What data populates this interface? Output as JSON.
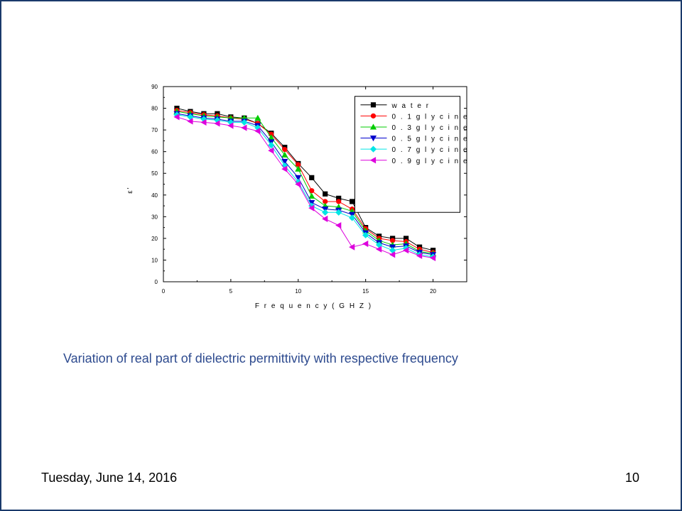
{
  "slide": {
    "caption": "Variation of real part of dielectric permittivity with respective frequency",
    "date": "Tuesday, June 14, 2016",
    "page_number": "10"
  },
  "chart_data": {
    "type": "line",
    "title": "",
    "xlabel": "F r e q u e n c y  ( G H Z )",
    "ylabel": "ε'",
    "xlim": [
      0,
      22.5
    ],
    "ylim": [
      0,
      90
    ],
    "xticks": [
      0,
      5,
      10,
      15,
      20
    ],
    "yticks": [
      0,
      10,
      20,
      30,
      40,
      50,
      60,
      70,
      80,
      90
    ],
    "grid": false,
    "legend_position": "top-right",
    "x": [
      1,
      2,
      3,
      4,
      5,
      6,
      7,
      8,
      9,
      10,
      11,
      12,
      13,
      14,
      15,
      16,
      17,
      18,
      19,
      20
    ],
    "series": [
      {
        "name": "w a t e r",
        "color": "#000000",
        "marker": "square",
        "values": [
          80,
          78.5,
          77.5,
          77.5,
          76,
          75.5,
          73,
          68.5,
          62,
          54.5,
          48,
          40.5,
          38.5,
          37,
          25,
          21,
          20,
          20,
          16,
          14.5
        ]
      },
      {
        "name": "0 . 1  g l y c i n e",
        "color": "#ff0000",
        "marker": "circle",
        "values": [
          79,
          78,
          77,
          76.5,
          75.5,
          75,
          73,
          68,
          61,
          54,
          42,
          37,
          37,
          33.5,
          24.5,
          20,
          19,
          18.5,
          15,
          13.5
        ]
      },
      {
        "name": "0 . 3  g l y c i n e",
        "color": "#00cc00",
        "marker": "triangle-up",
        "values": [
          78.5,
          77.5,
          76.5,
          76,
          75.5,
          75.5,
          75.5,
          66.5,
          58.5,
          52,
          39.5,
          35,
          34.5,
          32.5,
          23.5,
          19,
          17,
          17.5,
          14,
          13
        ]
      },
      {
        "name": "0 . 5  g l y c i n e",
        "color": "#0000cc",
        "marker": "triangle-down",
        "values": [
          77.5,
          76.5,
          75.5,
          75,
          74,
          74,
          72,
          64.5,
          55.5,
          48,
          36.5,
          33.5,
          33,
          31,
          22.5,
          18,
          16,
          16.5,
          13.5,
          12.5
        ]
      },
      {
        "name": "0 . 7  g l y c i n e",
        "color": "#00e5e5",
        "marker": "diamond",
        "values": [
          77,
          76,
          75,
          74.5,
          73.5,
          73.5,
          71,
          63,
          53.5,
          46,
          35,
          32,
          32,
          29.5,
          21.5,
          17,
          14.5,
          15.5,
          12.5,
          11.5
        ]
      },
      {
        "name": "0 . 9  g l y c i n e",
        "color": "#dd00dd",
        "marker": "triangle-left",
        "values": [
          76,
          74,
          73.5,
          73,
          72,
          71,
          69.5,
          60.5,
          52,
          45,
          34,
          29,
          26,
          16,
          17.5,
          15,
          12.5,
          14.5,
          12,
          11
        ]
      }
    ]
  }
}
